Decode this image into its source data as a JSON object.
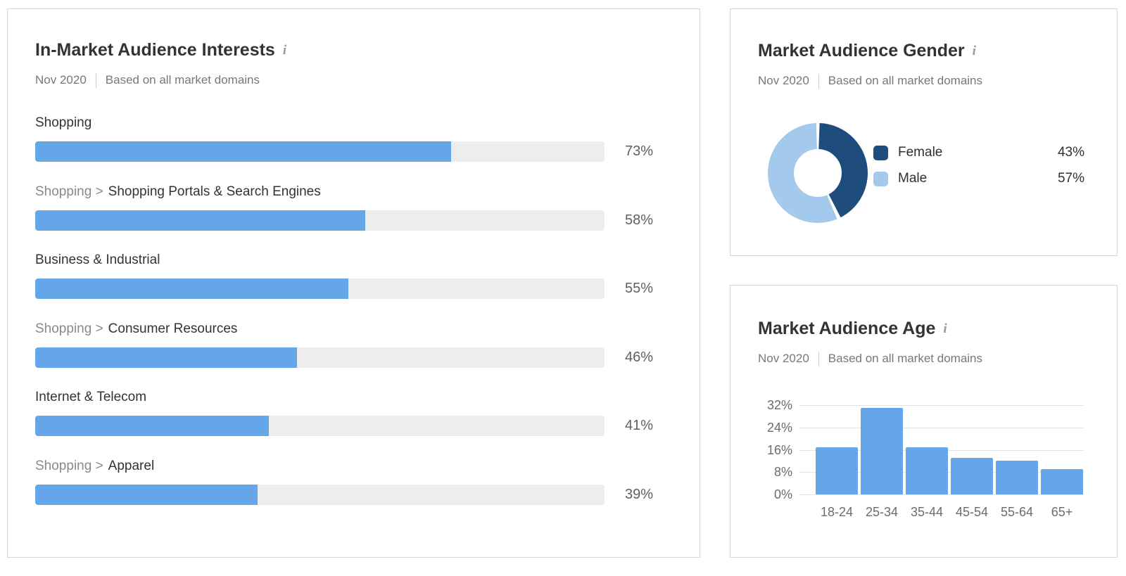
{
  "ui": {
    "info_glyph": "i",
    "accent_blue": "#64a6e8",
    "track_gray": "#ededed",
    "grid_gray": "#e3e3e3",
    "female_dark_blue": "#1e4c7c",
    "male_light_blue": "#a3c9ec"
  },
  "chart_data": [
    {
      "type": "bar",
      "orientation": "horizontal",
      "title": "In-Market Audience Interests",
      "subtitle_date": "Nov 2020",
      "subtitle_scope": "Based on all market domains",
      "xlim": [
        0,
        100
      ],
      "rows": [
        {
          "prefix": "",
          "label": "Shopping",
          "value": 73,
          "display": "73%"
        },
        {
          "prefix": "Shopping >",
          "label": "Shopping Portals & Search Engines",
          "value": 58,
          "display": "58%"
        },
        {
          "prefix": "",
          "label": "Business & Industrial",
          "value": 55,
          "display": "55%"
        },
        {
          "prefix": "Shopping >",
          "label": "Consumer Resources",
          "value": 46,
          "display": "46%"
        },
        {
          "prefix": "",
          "label": "Internet & Telecom",
          "value": 41,
          "display": "41%"
        },
        {
          "prefix": "Shopping >",
          "label": "Apparel",
          "value": 39,
          "display": "39%"
        }
      ]
    },
    {
      "type": "pie",
      "donut": true,
      "start_angle": "top",
      "direction": "clockwise",
      "legend_position": "right",
      "title": "Market Audience Gender",
      "subtitle_date": "Nov 2020",
      "subtitle_scope": "Based on all market domains",
      "slices": [
        {
          "label": "Female",
          "value": 43,
          "display": "43%",
          "color": "#1e4c7c"
        },
        {
          "label": "Male",
          "value": 57,
          "display": "57%",
          "color": "#a3c9ec"
        }
      ]
    },
    {
      "type": "bar",
      "orientation": "vertical",
      "title": "Market Audience Age",
      "subtitle_date": "Nov 2020",
      "subtitle_scope": "Based on all market domains",
      "categories": [
        "18-24",
        "25-34",
        "35-44",
        "45-54",
        "55-64",
        "65+"
      ],
      "values": [
        17,
        31,
        17,
        13,
        12,
        9
      ],
      "value_displays": [
        "17%",
        "31%",
        "17%",
        "13%",
        "12%",
        "9%"
      ],
      "yticks": [
        "32%",
        "24%",
        "16%",
        "8%",
        "0%"
      ],
      "ylim": [
        0,
        32
      ],
      "grid": true
    }
  ]
}
